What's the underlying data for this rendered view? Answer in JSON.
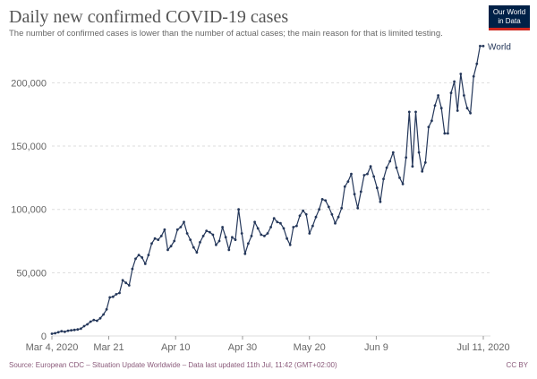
{
  "header": {
    "title": "Daily new confirmed COVID-19 cases",
    "subtitle": "The number of confirmed cases is lower than the number of actual cases; the main reason for that is limited testing."
  },
  "logo": {
    "line1": "Our World",
    "line2": "in Data"
  },
  "footer": {
    "source": "Source: European CDC – Situation Update Worldwide – Data last updated 11th Jul, 11:42 (GMT+02:00)",
    "license": "CC BY"
  },
  "colors": {
    "line": "#24375a",
    "grid": "#dddddd",
    "axis_text": "#666666",
    "series_label": "#24375a"
  },
  "chart_data": {
    "type": "line",
    "title": "Daily new confirmed COVID-19 cases",
    "xlabel": "",
    "ylabel": "",
    "ylim": [
      0,
      230000
    ],
    "grid": true,
    "x_tick_labels": [
      "Mar 4, 2020",
      "Mar 21",
      "Apr 10",
      "Apr 30",
      "May 20",
      "Jun 9",
      "Jul 11, 2020"
    ],
    "y_tick_labels": [
      "0",
      "50,000",
      "100,000",
      "150,000",
      "200,000"
    ],
    "series": [
      {
        "name": "World",
        "x_start": "2020-03-04",
        "x_end": "2020-07-11",
        "values": [
          1800,
          2200,
          3000,
          3800,
          3300,
          4200,
          4500,
          4800,
          5200,
          5800,
          7800,
          9200,
          11300,
          12700,
          12000,
          14000,
          17000,
          21000,
          30500,
          31000,
          33000,
          34000,
          44000,
          42000,
          40000,
          53000,
          61000,
          64000,
          62000,
          57000,
          64000,
          73000,
          77000,
          76000,
          79000,
          84000,
          68000,
          71000,
          75000,
          84000,
          86000,
          90000,
          81000,
          76000,
          70000,
          66000,
          74000,
          79000,
          83000,
          82000,
          80000,
          72000,
          75000,
          86000,
          78000,
          68000,
          78000,
          76000,
          100000,
          81000,
          65000,
          73000,
          79000,
          90000,
          85000,
          80000,
          79000,
          81000,
          86000,
          93000,
          90000,
          89000,
          85000,
          77000,
          72000,
          86000,
          87000,
          95000,
          99000,
          96000,
          81000,
          87000,
          94000,
          100000,
          108000,
          107000,
          102000,
          96000,
          89000,
          94000,
          101000,
          118000,
          122000,
          128000,
          112000,
          101000,
          114000,
          127000,
          128000,
          134000,
          126000,
          117000,
          106000,
          124000,
          133000,
          138000,
          145000,
          133000,
          125000,
          120000,
          141000,
          177000,
          134000,
          177000,
          145000,
          130000,
          137000,
          165000,
          170000,
          182000,
          190000,
          180000,
          160000,
          160000,
          192000,
          201000,
          178000,
          207000,
          190000,
          180000,
          176000,
          205000,
          215000,
          229000,
          229000
        ]
      }
    ]
  }
}
